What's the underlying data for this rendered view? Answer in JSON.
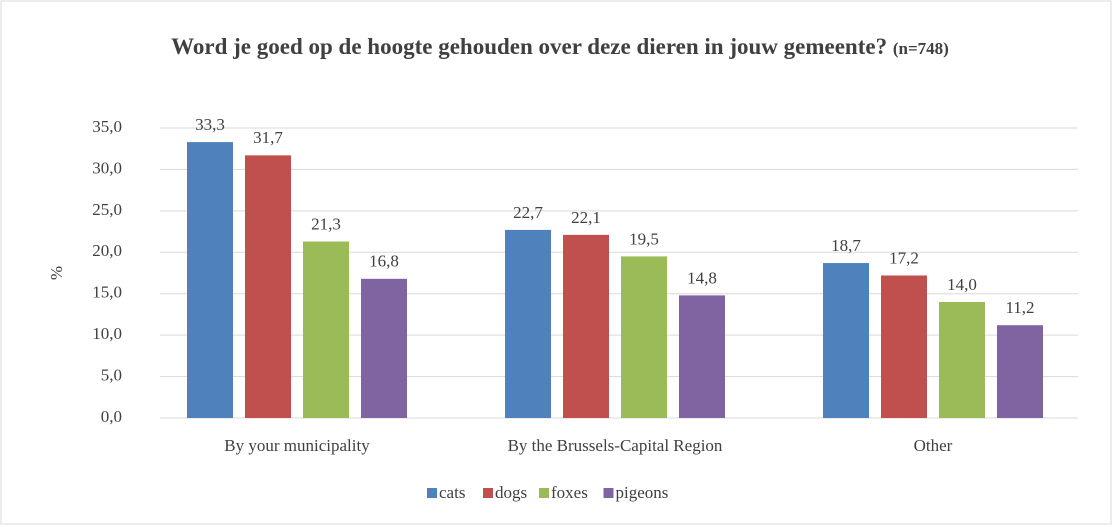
{
  "chart_data": {
    "type": "bar",
    "title": "Word je goed op de hoogte gehouden over deze dieren in jouw gemeente?",
    "title_note": "(n=748)",
    "y_label": "%",
    "categories": [
      "By your municipality",
      "By the Brussels-Capital Region",
      "Other"
    ],
    "series": [
      {
        "name": "cats",
        "color": "#4f81bd",
        "values": [
          33.3,
          22.7,
          18.7
        ],
        "value_labels": [
          "33,3",
          "22,7",
          "18,7"
        ]
      },
      {
        "name": "dogs",
        "color": "#c0504d",
        "values": [
          31.7,
          22.1,
          17.2
        ],
        "value_labels": [
          "31,7",
          "22,1",
          "17,2"
        ]
      },
      {
        "name": "foxes",
        "color": "#9bbb59",
        "values": [
          21.3,
          19.5,
          14.0
        ],
        "value_labels": [
          "21,3",
          "19,5",
          "14,0"
        ]
      },
      {
        "name": "pigeons",
        "color": "#8064a2",
        "values": [
          16.8,
          14.8,
          11.2
        ],
        "value_labels": [
          "16,8",
          "14,8",
          "11,2"
        ]
      }
    ],
    "ylim": [
      0,
      35
    ],
    "yticks": [
      {
        "value": 0,
        "label": "0,0"
      },
      {
        "value": 5,
        "label": "5,0"
      },
      {
        "value": 10,
        "label": "10,0"
      },
      {
        "value": 15,
        "label": "15,0"
      },
      {
        "value": 20,
        "label": "20,0"
      },
      {
        "value": 25,
        "label": "25,0"
      },
      {
        "value": 30,
        "label": "30,0"
      },
      {
        "value": 35,
        "label": "35,0"
      }
    ],
    "grid": true,
    "legend": "bottom"
  }
}
